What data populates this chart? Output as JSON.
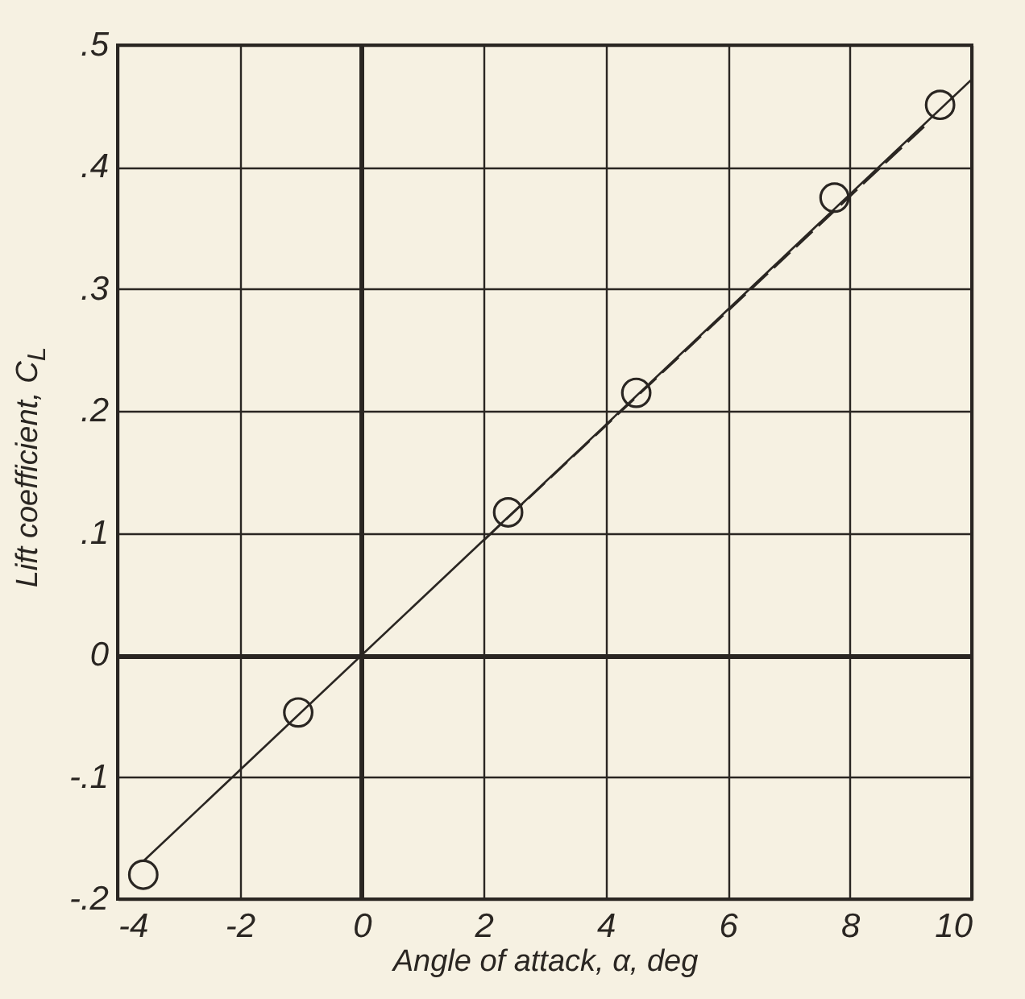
{
  "chart_data": {
    "type": "scatter",
    "xlabel": "Angle of attack, α, deg",
    "ylabel": "Lift coefficient, C$_{L}$",
    "xlim": [
      -4,
      10
    ],
    "ylim": [
      -0.2,
      0.5
    ],
    "xticks": [
      -4,
      -2,
      0,
      2,
      4,
      6,
      8,
      10
    ],
    "yticks": [
      {
        "value": -0.2,
        "label": "-.2"
      },
      {
        "value": -0.1,
        "label": "-.1"
      },
      0,
      {
        "value": 0.1,
        "label": ".1"
      },
      {
        "value": 0.2,
        "label": ".2"
      },
      {
        "value": 0.3,
        "label": ".3"
      },
      {
        "value": 0.4,
        "label": ".4"
      },
      {
        "value": 0.5,
        "label": ".5"
      }
    ],
    "grid": true,
    "series": [
      {
        "type": "line",
        "color": "#2a2622",
        "line_style": "solid",
        "x": [
          -3.58,
          10
        ],
        "values": [
          -0.169,
          0.472
        ]
      },
      {
        "type": "line",
        "color": "#2a2622",
        "line_style": "dashed",
        "x": [
          2,
          9.3
        ],
        "values": [
          0.094,
          0.437
        ]
      },
      {
        "color": "#2a2622",
        "marker": "circle",
        "x": [
          -3.58,
          -1.04,
          2.4,
          4.5,
          7.75,
          9.48
        ],
        "values": [
          -0.18,
          -0.047,
          0.117,
          0.215,
          0.375,
          0.451
        ]
      }
    ]
  }
}
